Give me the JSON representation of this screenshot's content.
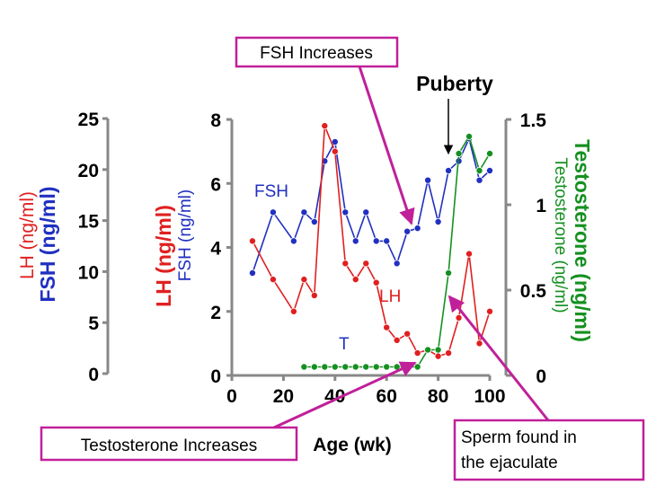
{
  "annotations": {
    "fsh_increases": "FSH Increases",
    "puberty": "Puberty",
    "testosterone_increases": "Testosterone Increases",
    "sperm_found": [
      "Sperm found in",
      "the ejaculate"
    ],
    "fsh_series_label": "FSH",
    "lh_series_label": "LH",
    "t_series_label": "T"
  },
  "colors": {
    "lh": "#e02020",
    "fsh": "#2030c0",
    "testosterone": "#159020",
    "arrow": "#c0209a",
    "axis": "#888888"
  },
  "chart_data": {
    "type": "line",
    "xlabel": "Age (wk)",
    "x_ticks": [
      "0",
      "20",
      "40",
      "60",
      "80",
      "100"
    ],
    "xlim": [
      0,
      100
    ],
    "axes": {
      "lh_fsh_outer": {
        "labels": [
          "LH (ng/ml)",
          "FSH (ng/ml)"
        ],
        "ylim": [
          0,
          25
        ],
        "ticks": [
          "0",
          "5",
          "10",
          "15",
          "20",
          "25"
        ]
      },
      "lh_fsh_inner": {
        "labels": [
          "LH (ng/ml)",
          "FSH (ng/ml)"
        ],
        "ylim": [
          0,
          8
        ],
        "ticks": [
          "0",
          "2",
          "4",
          "6",
          "8"
        ]
      },
      "testosterone": {
        "labels": [
          "Testosterone (ng/ml)",
          "Testosterone (ng/ml)"
        ],
        "ylim": [
          0,
          1.5
        ],
        "ticks": [
          "0",
          "0.5",
          "1",
          "1.5"
        ]
      }
    },
    "series": [
      {
        "name": "FSH",
        "axis": "lh_fsh_inner",
        "x": [
          8,
          16,
          24,
          28,
          32,
          36,
          40,
          44,
          48,
          52,
          56,
          60,
          64,
          68,
          72,
          76,
          80,
          84,
          88,
          92,
          96,
          100
        ],
        "y": [
          3.2,
          5.1,
          4.2,
          5.1,
          4.8,
          6.7,
          7.3,
          5.1,
          4.2,
          5.1,
          4.2,
          4.2,
          3.5,
          4.5,
          4.6,
          6.1,
          4.8,
          6.4,
          6.7,
          7.4,
          6.1,
          6.4
        ]
      },
      {
        "name": "LH",
        "axis": "lh_fsh_inner",
        "x": [
          8,
          16,
          24,
          28,
          32,
          36,
          40,
          44,
          48,
          52,
          56,
          60,
          64,
          68,
          72,
          76,
          80,
          84,
          88,
          92,
          96,
          100
        ],
        "y": [
          4.2,
          3.0,
          2.0,
          3.0,
          2.5,
          7.8,
          7.0,
          3.5,
          3.0,
          3.5,
          2.9,
          1.5,
          1.1,
          1.3,
          0.7,
          0.8,
          0.6,
          0.7,
          1.8,
          3.8,
          1.0,
          2.0
        ]
      },
      {
        "name": "T",
        "axis": "testosterone",
        "x": [
          28,
          32,
          36,
          40,
          44,
          48,
          52,
          56,
          60,
          64,
          68,
          72,
          76,
          80,
          84,
          88,
          92,
          96,
          100
        ],
        "y": [
          0.05,
          0.05,
          0.05,
          0.05,
          0.05,
          0.05,
          0.05,
          0.05,
          0.05,
          0.05,
          0.05,
          0.05,
          0.15,
          0.15,
          0.6,
          1.3,
          1.4,
          1.2,
          1.3
        ]
      }
    ]
  }
}
